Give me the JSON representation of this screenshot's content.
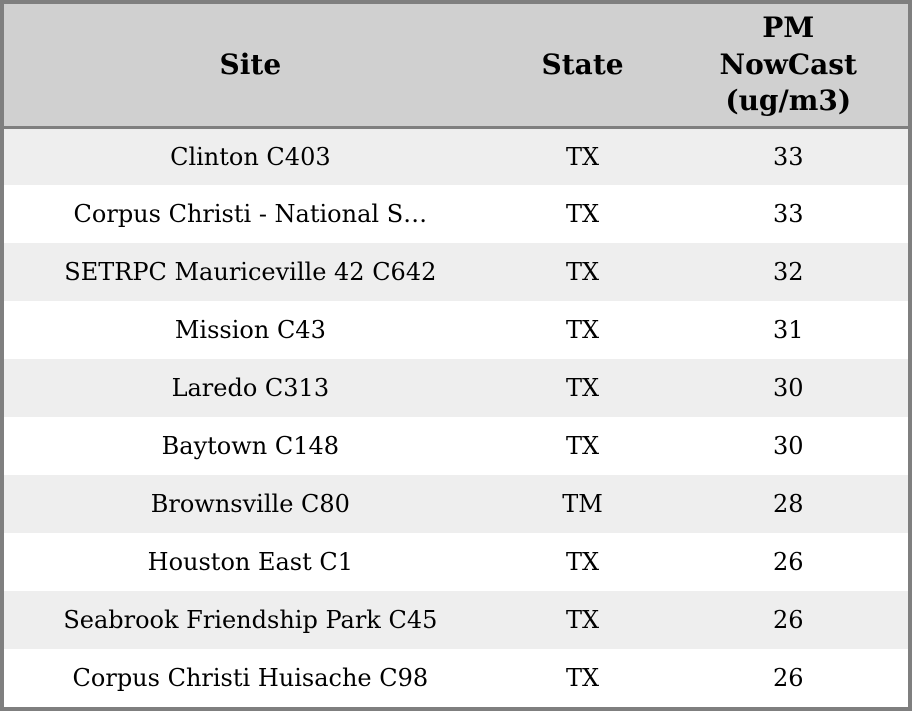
{
  "colors": {
    "border": "#7f7f7f",
    "header_bg": "#d0d0d0",
    "row_stripe_bg": "#eeeeee",
    "row_bg": "#ffffff",
    "text": "#000000"
  },
  "table": {
    "columns": [
      {
        "label": "Site"
      },
      {
        "label": "State"
      },
      {
        "label": "PM NowCast (ug/m3)",
        "lines": [
          "PM",
          "NowCast",
          "(ug/m3)"
        ]
      }
    ],
    "rows": [
      {
        "site": "Clinton C403",
        "state": "TX",
        "pm_nowcast": "33"
      },
      {
        "site": "Corpus Christi - National S…",
        "state": "TX",
        "pm_nowcast": "33"
      },
      {
        "site": "SETRPC Mauriceville 42 C642",
        "state": "TX",
        "pm_nowcast": "32"
      },
      {
        "site": "Mission C43",
        "state": "TX",
        "pm_nowcast": "31"
      },
      {
        "site": "Laredo C313",
        "state": "TX",
        "pm_nowcast": "30"
      },
      {
        "site": "Baytown C148",
        "state": "TX",
        "pm_nowcast": "30"
      },
      {
        "site": "Brownsville C80",
        "state": "TM",
        "pm_nowcast": "28"
      },
      {
        "site": "Houston East C1",
        "state": "TX",
        "pm_nowcast": "26"
      },
      {
        "site": "Seabrook Friendship Park C45",
        "state": "TX",
        "pm_nowcast": "26"
      },
      {
        "site": "Corpus Christi Huisache C98",
        "state": "TX",
        "pm_nowcast": "26"
      }
    ]
  }
}
